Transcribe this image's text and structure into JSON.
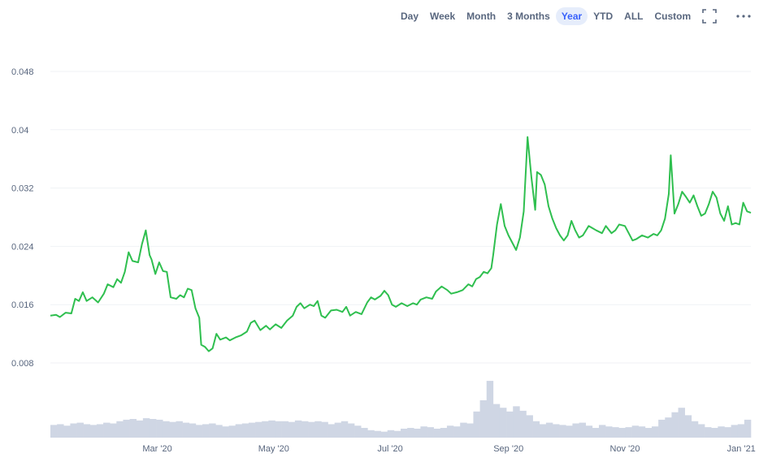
{
  "toolbar": {
    "ranges": [
      "Day",
      "Week",
      "Month",
      "3 Months",
      "Year",
      "YTD",
      "ALL",
      "Custom"
    ],
    "active": "Year",
    "icons": [
      "fullscreen-icon",
      "more-options-icon"
    ]
  },
  "colors": {
    "line": "#16c784",
    "line_stroke": "#2fbf4f",
    "volume": "#cfd6e4",
    "grid": "#eff2f5",
    "text": "#58667e",
    "active_bg": "#e6edfb",
    "active_text": "#3861fb"
  },
  "chart_data": {
    "type": "line",
    "title": "",
    "xlabel": "",
    "ylabel": "",
    "ylim": [
      0.0,
      0.052
    ],
    "y_ticks": [
      "0.048",
      "0.04",
      "0.032",
      "0.024",
      "0.016",
      "0.008"
    ],
    "y_tick_values": [
      0.048,
      0.04,
      0.032,
      0.024,
      0.016,
      0.008
    ],
    "x_ticks": [
      "Mar '20",
      "May '20",
      "Jul '20",
      "Sep '20",
      "Nov '20",
      "Jan '21"
    ],
    "x_tick_dates": [
      "2020-03-01",
      "2020-05-01",
      "2020-07-01",
      "2020-09-01",
      "2020-11-01",
      "2021-01-01"
    ],
    "x_range": [
      "2020-01-05",
      "2021-01-06"
    ],
    "grid": "horizontal",
    "series": [
      {
        "values": [
          [
            "2020-01-05",
            0.0145
          ],
          [
            "2020-01-08",
            0.0146
          ],
          [
            "2020-01-10",
            0.0143
          ],
          [
            "2020-01-13",
            0.0149
          ],
          [
            "2020-01-16",
            0.0148
          ],
          [
            "2020-01-18",
            0.0168
          ],
          [
            "2020-01-20",
            0.0165
          ],
          [
            "2020-01-22",
            0.0177
          ],
          [
            "2020-01-24",
            0.0165
          ],
          [
            "2020-01-27",
            0.017
          ],
          [
            "2020-01-30",
            0.0163
          ],
          [
            "2020-02-02",
            0.0175
          ],
          [
            "2020-02-04",
            0.0188
          ],
          [
            "2020-02-07",
            0.0184
          ],
          [
            "2020-02-09",
            0.0195
          ],
          [
            "2020-02-11",
            0.019
          ],
          [
            "2020-02-13",
            0.0205
          ],
          [
            "2020-02-15",
            0.0232
          ],
          [
            "2020-02-17",
            0.022
          ],
          [
            "2020-02-20",
            0.0218
          ],
          [
            "2020-02-22",
            0.0243
          ],
          [
            "2020-02-24",
            0.0262
          ],
          [
            "2020-02-26",
            0.0228
          ],
          [
            "2020-02-27",
            0.0222
          ],
          [
            "2020-02-29",
            0.0202
          ],
          [
            "2020-03-02",
            0.0218
          ],
          [
            "2020-03-04",
            0.0206
          ],
          [
            "2020-03-06",
            0.0205
          ],
          [
            "2020-03-08",
            0.017
          ],
          [
            "2020-03-11",
            0.0168
          ],
          [
            "2020-03-13",
            0.0173
          ],
          [
            "2020-03-15",
            0.017
          ],
          [
            "2020-03-17",
            0.0182
          ],
          [
            "2020-03-19",
            0.018
          ],
          [
            "2020-03-21",
            0.0155
          ],
          [
            "2020-03-23",
            0.0142
          ],
          [
            "2020-03-24",
            0.0105
          ],
          [
            "2020-03-26",
            0.0102
          ],
          [
            "2020-03-28",
            0.0096
          ],
          [
            "2020-03-30",
            0.01
          ],
          [
            "2020-04-01",
            0.012
          ],
          [
            "2020-04-03",
            0.0112
          ],
          [
            "2020-04-06",
            0.0115
          ],
          [
            "2020-04-08",
            0.0111
          ],
          [
            "2020-04-11",
            0.0115
          ],
          [
            "2020-04-14",
            0.0118
          ],
          [
            "2020-04-17",
            0.0123
          ],
          [
            "2020-04-19",
            0.0135
          ],
          [
            "2020-04-21",
            0.0138
          ],
          [
            "2020-04-24",
            0.0125
          ],
          [
            "2020-04-27",
            0.0131
          ],
          [
            "2020-04-29",
            0.0126
          ],
          [
            "2020-05-02",
            0.0133
          ],
          [
            "2020-05-05",
            0.0128
          ],
          [
            "2020-05-08",
            0.0138
          ],
          [
            "2020-05-11",
            0.0145
          ],
          [
            "2020-05-13",
            0.0157
          ],
          [
            "2020-05-15",
            0.0162
          ],
          [
            "2020-05-17",
            0.0155
          ],
          [
            "2020-05-20",
            0.016
          ],
          [
            "2020-05-22",
            0.0158
          ],
          [
            "2020-05-24",
            0.0165
          ],
          [
            "2020-05-26",
            0.0145
          ],
          [
            "2020-05-28",
            0.0142
          ],
          [
            "2020-05-31",
            0.0152
          ],
          [
            "2020-06-03",
            0.0153
          ],
          [
            "2020-06-06",
            0.015
          ],
          [
            "2020-06-08",
            0.0157
          ],
          [
            "2020-06-10",
            0.0145
          ],
          [
            "2020-06-13",
            0.015
          ],
          [
            "2020-06-16",
            0.0147
          ],
          [
            "2020-06-19",
            0.0163
          ],
          [
            "2020-06-21",
            0.017
          ],
          [
            "2020-06-23",
            0.0167
          ],
          [
            "2020-06-26",
            0.0172
          ],
          [
            "2020-06-28",
            0.0179
          ],
          [
            "2020-06-30",
            0.0173
          ],
          [
            "2020-07-02",
            0.016
          ],
          [
            "2020-07-04",
            0.0157
          ],
          [
            "2020-07-07",
            0.0162
          ],
          [
            "2020-07-10",
            0.0158
          ],
          [
            "2020-07-13",
            0.0162
          ],
          [
            "2020-07-15",
            0.016
          ],
          [
            "2020-07-17",
            0.0167
          ],
          [
            "2020-07-20",
            0.017
          ],
          [
            "2020-07-23",
            0.0168
          ],
          [
            "2020-07-25",
            0.0178
          ],
          [
            "2020-07-28",
            0.0185
          ],
          [
            "2020-07-31",
            0.018
          ],
          [
            "2020-08-02",
            0.0175
          ],
          [
            "2020-08-05",
            0.0177
          ],
          [
            "2020-08-08",
            0.018
          ],
          [
            "2020-08-11",
            0.0188
          ],
          [
            "2020-08-13",
            0.0185
          ],
          [
            "2020-08-15",
            0.0195
          ],
          [
            "2020-08-17",
            0.0198
          ],
          [
            "2020-08-19",
            0.0205
          ],
          [
            "2020-08-21",
            0.0203
          ],
          [
            "2020-08-23",
            0.021
          ],
          [
            "2020-08-24",
            0.0228
          ],
          [
            "2020-08-26",
            0.027
          ],
          [
            "2020-08-28",
            0.0298
          ],
          [
            "2020-08-30",
            0.0268
          ],
          [
            "2020-09-01",
            0.0255
          ],
          [
            "2020-09-03",
            0.0245
          ],
          [
            "2020-09-05",
            0.0235
          ],
          [
            "2020-09-07",
            0.0252
          ],
          [
            "2020-09-09",
            0.0288
          ],
          [
            "2020-09-11",
            0.039
          ],
          [
            "2020-09-13",
            0.0335
          ],
          [
            "2020-09-15",
            0.029
          ],
          [
            "2020-09-16",
            0.0342
          ],
          [
            "2020-09-18",
            0.0338
          ],
          [
            "2020-09-20",
            0.0325
          ],
          [
            "2020-09-22",
            0.0295
          ],
          [
            "2020-09-24",
            0.0278
          ],
          [
            "2020-09-26",
            0.0265
          ],
          [
            "2020-09-28",
            0.0255
          ],
          [
            "2020-09-30",
            0.0248
          ],
          [
            "2020-10-02",
            0.0255
          ],
          [
            "2020-10-04",
            0.0275
          ],
          [
            "2020-10-06",
            0.0262
          ],
          [
            "2020-10-08",
            0.0252
          ],
          [
            "2020-10-10",
            0.0255
          ],
          [
            "2020-10-13",
            0.0268
          ],
          [
            "2020-10-15",
            0.0265
          ],
          [
            "2020-10-17",
            0.0262
          ],
          [
            "2020-10-20",
            0.0258
          ],
          [
            "2020-10-22",
            0.0268
          ],
          [
            "2020-10-25",
            0.0258
          ],
          [
            "2020-10-27",
            0.0262
          ],
          [
            "2020-10-29",
            0.027
          ],
          [
            "2020-11-01",
            0.0268
          ],
          [
            "2020-11-03",
            0.0258
          ],
          [
            "2020-11-05",
            0.0248
          ],
          [
            "2020-11-07",
            0.025
          ],
          [
            "2020-11-10",
            0.0255
          ],
          [
            "2020-11-13",
            0.0252
          ],
          [
            "2020-11-16",
            0.0257
          ],
          [
            "2020-11-18",
            0.0255
          ],
          [
            "2020-11-20",
            0.0262
          ],
          [
            "2020-11-22",
            0.0278
          ],
          [
            "2020-11-24",
            0.0312
          ],
          [
            "2020-11-25",
            0.0365
          ],
          [
            "2020-11-27",
            0.0285
          ],
          [
            "2020-11-29",
            0.0298
          ],
          [
            "2020-12-01",
            0.0315
          ],
          [
            "2020-12-03",
            0.0308
          ],
          [
            "2020-12-05",
            0.03
          ],
          [
            "2020-12-07",
            0.031
          ],
          [
            "2020-12-09",
            0.0295
          ],
          [
            "2020-12-11",
            0.0282
          ],
          [
            "2020-12-13",
            0.0285
          ],
          [
            "2020-12-15",
            0.0298
          ],
          [
            "2020-12-17",
            0.0315
          ],
          [
            "2020-12-19",
            0.0307
          ],
          [
            "2020-12-21",
            0.0285
          ],
          [
            "2020-12-23",
            0.0275
          ],
          [
            "2020-12-25",
            0.0295
          ],
          [
            "2020-12-27",
            0.027
          ],
          [
            "2020-12-29",
            0.0272
          ],
          [
            "2020-12-31",
            0.027
          ],
          [
            "2021-01-02",
            0.03
          ],
          [
            "2021-01-04",
            0.0288
          ],
          [
            "2021-01-06",
            0.0286
          ]
        ]
      }
    ],
    "volume_relative": [
      0.17,
      0.18,
      0.16,
      0.19,
      0.2,
      0.18,
      0.17,
      0.18,
      0.2,
      0.19,
      0.22,
      0.24,
      0.25,
      0.23,
      0.26,
      0.25,
      0.24,
      0.22,
      0.21,
      0.22,
      0.2,
      0.19,
      0.17,
      0.18,
      0.19,
      0.17,
      0.15,
      0.16,
      0.18,
      0.19,
      0.2,
      0.21,
      0.22,
      0.23,
      0.22,
      0.22,
      0.21,
      0.23,
      0.22,
      0.21,
      0.22,
      0.21,
      0.18,
      0.2,
      0.22,
      0.19,
      0.16,
      0.13,
      0.1,
      0.09,
      0.08,
      0.1,
      0.09,
      0.12,
      0.13,
      0.12,
      0.15,
      0.14,
      0.12,
      0.13,
      0.16,
      0.15,
      0.2,
      0.19,
      0.35,
      0.5,
      0.76,
      0.45,
      0.4,
      0.35,
      0.42,
      0.36,
      0.3,
      0.22,
      0.18,
      0.2,
      0.18,
      0.17,
      0.16,
      0.19,
      0.2,
      0.16,
      0.13,
      0.17,
      0.15,
      0.14,
      0.13,
      0.14,
      0.16,
      0.15,
      0.13,
      0.15,
      0.24,
      0.27,
      0.34,
      0.4,
      0.3,
      0.22,
      0.18,
      0.14,
      0.13,
      0.15,
      0.14,
      0.17,
      0.18,
      0.24
    ]
  }
}
